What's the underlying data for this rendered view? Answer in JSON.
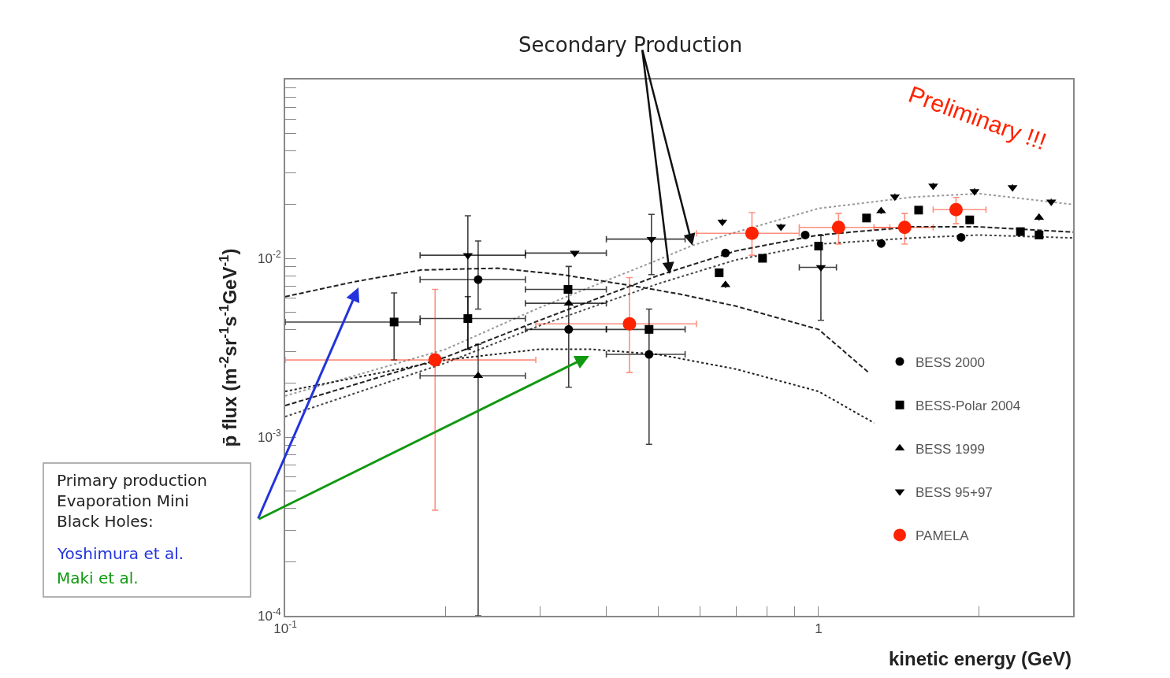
{
  "chart_data": {
    "type": "scatter",
    "xlabel": "kinetic energy (GeV)",
    "ylabel": "p̄ flux (m$^{-2}$sr$^{-1}$s$^{-1}$GeV$^{-1}$)",
    "log": "xy",
    "grid": false,
    "legend": "bottom right",
    "xlim": [
      0.1,
      3
    ],
    "ylim": [
      0.0001,
      0.1
    ],
    "xticks": [
      {
        "value": 0.1,
        "label": "10$^{-1}$"
      },
      {
        "value": 0.2,
        "label": null
      },
      {
        "value": 0.3,
        "label": null
      },
      {
        "value": 0.4,
        "label": null
      },
      {
        "value": 0.5,
        "label": null
      },
      {
        "value": 0.6,
        "label": null
      },
      {
        "value": 0.7,
        "label": null
      },
      {
        "value": 0.8,
        "label": null
      },
      {
        "value": 0.9,
        "label": null
      },
      1,
      {
        "value": 2,
        "label": null
      },
      {
        "value": 3,
        "label": null
      }
    ],
    "yticks": [
      {
        "value": 0.0001,
        "label": "10$^{-4}$"
      },
      {
        "value": 0.0002,
        "label": null
      },
      {
        "value": 0.0003,
        "label": null
      },
      {
        "value": 0.0004,
        "label": null
      },
      {
        "value": 0.0005,
        "label": null
      },
      {
        "value": 0.0006,
        "label": null
      },
      {
        "value": 0.0007,
        "label": null
      },
      {
        "value": 0.0008,
        "label": null
      },
      {
        "value": 0.0009,
        "label": null
      },
      {
        "value": 0.001,
        "label": "10$^{-3}$"
      },
      {
        "value": 0.002,
        "label": null
      },
      {
        "value": 0.003,
        "label": null
      },
      {
        "value": 0.004,
        "label": null
      },
      {
        "value": 0.005,
        "label": null
      },
      {
        "value": 0.006,
        "label": null
      },
      {
        "value": 0.007,
        "label": null
      },
      {
        "value": 0.008,
        "label": null
      },
      {
        "value": 0.009,
        "label": null
      },
      {
        "value": 0.01,
        "label": "10$^{-2}$"
      },
      {
        "value": 0.02,
        "label": null
      },
      {
        "value": 0.03,
        "label": null
      },
      {
        "value": 0.04,
        "label": null
      },
      {
        "value": 0.05,
        "label": null
      },
      {
        "value": 0.06,
        "label": null
      },
      {
        "value": 0.07,
        "label": null
      },
      {
        "value": 0.08,
        "label": null
      },
      {
        "value": 0.09,
        "label": null
      },
      {
        "value": 0.1,
        "label": null
      }
    ],
    "series": [
      {
        "type": "line",
        "color": "#999999",
        "line_style": "dotted",
        "marker": "none",
        "x": [
          0.1,
          0.2,
          0.3,
          0.5,
          0.58,
          0.7,
          1.0,
          1.5,
          2,
          3
        ],
        "values": [
          0.0017,
          0.0031,
          0.0053,
          0.0098,
          0.0118,
          0.014,
          0.019,
          0.022,
          0.023,
          0.02
        ]
      },
      {
        "type": "line",
        "color": "#222222",
        "line_style": "dashed",
        "marker": "none",
        "x": [
          0.1,
          0.2,
          0.3,
          0.5,
          0.7,
          1.0,
          1.5,
          2,
          3
        ],
        "values": [
          0.0015,
          0.0028,
          0.0045,
          0.008,
          0.011,
          0.0135,
          0.015,
          0.015,
          0.014
        ]
      },
      {
        "type": "line",
        "color": "#444444",
        "line_style": "dotted",
        "marker": "none",
        "x": [
          0.1,
          0.2,
          0.3,
          0.5,
          0.7,
          1.0,
          1.5,
          2,
          3
        ],
        "values": [
          0.0013,
          0.0026,
          0.0042,
          0.0072,
          0.0098,
          0.012,
          0.013,
          0.0135,
          0.013
        ]
      },
      {
        "type": "line",
        "color": "#222222",
        "line_style": "dashed",
        "marker": "none",
        "x": [
          0.1,
          0.135,
          0.18,
          0.25,
          0.33,
          0.45,
          0.55,
          0.7,
          1.0,
          1.24
        ],
        "values": [
          0.0061,
          0.0074,
          0.0086,
          0.0088,
          0.0081,
          0.007,
          0.0063,
          0.0054,
          0.004,
          0.0023
        ]
      },
      {
        "type": "line",
        "color": "#222222",
        "line_style": "dotted",
        "marker": "none",
        "x": [
          0.1,
          0.2,
          0.3,
          0.372,
          0.5,
          0.7,
          1.0,
          1.27
        ],
        "values": [
          0.0018,
          0.0027,
          0.0031,
          0.0031,
          0.0029,
          0.0024,
          0.0018,
          0.0012
        ]
      },
      {
        "name": "BESS 2000",
        "color": "#000000",
        "marker": "circle",
        "x": [
          0.23,
          0.34,
          0.481,
          0.669,
          0.944,
          1.31,
          1.85
        ],
        "values": [
          0.0076,
          0.004,
          0.0029,
          0.0107,
          0.0135,
          0.0121,
          0.0131
        ],
        "errors": [
          [
            0.0052,
            0.0125
          ],
          [
            0.0019,
            0.009
          ],
          [
            0.00091,
            0.0052
          ],
          null,
          null,
          null,
          null
        ],
        "xerrors": [
          [
            0.179,
            0.282
          ],
          [
            0.282,
            0.4
          ],
          [
            0.4,
            0.562
          ],
          null,
          null,
          null,
          null
        ]
      },
      {
        "name": "BESS-Polar 2004",
        "color": "#000000",
        "marker": "square",
        "x": [
          0.16,
          0.22,
          0.339,
          0.481,
          0.651,
          0.785,
          1.0,
          1.23,
          1.54,
          1.92,
          2.39,
          2.59
        ],
        "values": [
          0.0044,
          0.0046,
          0.0067,
          0.004,
          0.0083,
          0.01,
          0.0117,
          0.0168,
          0.0186,
          0.0164,
          0.0141,
          0.0135
        ],
        "errors": [
          [
            0.0027,
            0.0064
          ],
          [
            0.0031,
            0.0061
          ],
          null,
          null,
          null,
          null,
          null,
          null,
          null,
          null,
          null,
          null
        ],
        "xerrors": [
          [
            0.1,
            0.179
          ],
          [
            0.179,
            0.282
          ],
          [
            0.282,
            0.4
          ],
          [
            0.4,
            0.562
          ],
          null,
          null,
          null,
          null,
          null,
          null,
          null,
          null
        ]
      },
      {
        "name": "BESS 1999",
        "color": "#000000",
        "marker": "triangle",
        "x": [
          0.23,
          0.34,
          0.669,
          1.31,
          2.59
        ],
        "values": [
          0.0022,
          0.0056,
          0.0071,
          0.0184,
          0.0169
        ],
        "errors": [
          [
            0.0001,
            0.0033
          ],
          null,
          null,
          null,
          null
        ],
        "xerrors": [
          [
            0.179,
            0.282
          ],
          [
            0.282,
            0.4
          ],
          null,
          null,
          null
        ]
      },
      {
        "name": "BESS 95+97",
        "color": "#000000",
        "marker": "triangle-down",
        "x": [
          0.22,
          0.349,
          0.486,
          0.66,
          0.85,
          1.01,
          1.39,
          1.64,
          1.96,
          2.31,
          2.73
        ],
        "values": [
          0.0104,
          0.0107,
          0.0128,
          0.016,
          0.015,
          0.0089,
          0.0221,
          0.0254,
          0.0237,
          0.0249,
          0.0207
        ],
        "errors": [
          [
            0.0031,
            0.0173
          ],
          null,
          [
            0.0081,
            0.0176
          ],
          null,
          null,
          [
            0.0045,
            0.0134
          ],
          null,
          null,
          null,
          null,
          null
        ],
        "xerrors": [
          [
            0.179,
            0.282
          ],
          [
            0.282,
            0.4
          ],
          [
            0.4,
            0.562
          ],
          null,
          null,
          [
            0.92,
            1.08
          ],
          null,
          null,
          null,
          null,
          null
        ]
      },
      {
        "name": "PAMELA",
        "color": "#ff2200",
        "marker": "circle",
        "x": [
          0.191,
          0.442,
          0.75,
          1.09,
          1.45,
          1.81
        ],
        "values": [
          0.0027,
          0.0043,
          0.0138,
          0.0149,
          0.0149,
          0.0187
        ],
        "errors": [
          [
            0.00039,
            0.0067
          ],
          [
            0.0023,
            0.0078
          ],
          [
            0.0104,
            0.018
          ],
          [
            0.012,
            0.0178
          ],
          [
            0.012,
            0.0178
          ],
          [
            0.0156,
            0.0219
          ]
        ],
        "xerrors": [
          [
            0.1,
            0.295
          ],
          [
            0.295,
            0.59
          ],
          [
            0.59,
            0.92
          ],
          [
            0.92,
            1.36
          ],
          [
            1.27,
            1.64
          ],
          [
            1.64,
            2.06
          ]
        ]
      }
    ],
    "annotations": [
      {
        "text": "Secondary Production",
        "x": 0.58,
        "y": 0.0118
      },
      "Preliminary !!!",
      "Primary production\nEvaporation Mini\nBlack Holes:",
      "Yoshimura et al.",
      "Maki et al."
    ]
  }
}
